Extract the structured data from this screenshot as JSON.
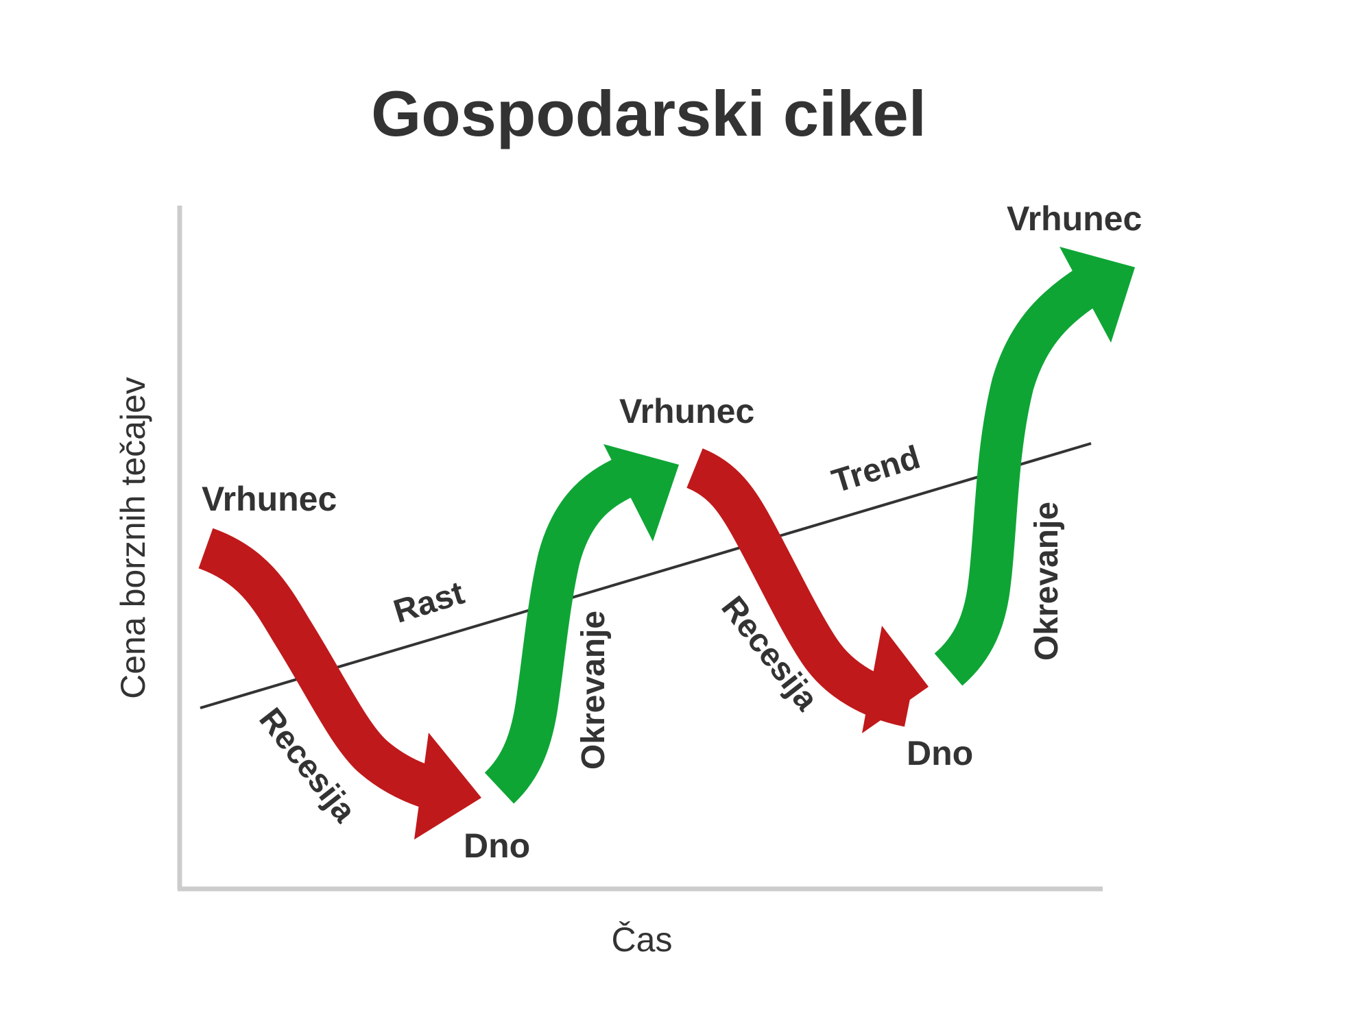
{
  "title": "Gospodarski cikel",
  "y_axis_label": "Cena borznih tečajev",
  "x_axis_label": "Čas",
  "trend_label": "Trend",
  "growth_label": "Rast",
  "peak_labels": [
    "Vrhunec",
    "Vrhunec",
    "Vrhunec"
  ],
  "trough_labels": [
    "Dno",
    "Dno"
  ],
  "recession_labels": [
    "Recesija",
    "Recesija"
  ],
  "recovery_labels": [
    "Okrevanje",
    "Okrevanje"
  ],
  "colors": {
    "recession_arrow": "#c0191b",
    "recovery_arrow": "#0ea535",
    "text": "#333333",
    "axis": "#cccccc",
    "trend_line": "#333333"
  }
}
